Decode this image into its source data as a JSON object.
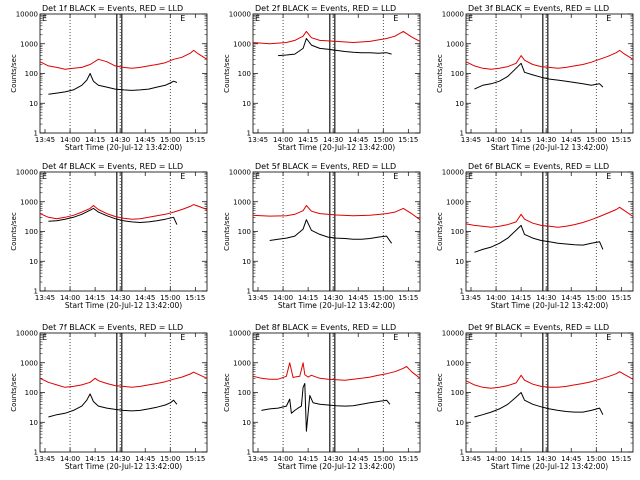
{
  "figure": {
    "colors": {
      "events": "#000000",
      "lld": "#e00000",
      "axes": "#000000"
    },
    "xlabel": "Start Time (20-Jul-12 13:42:00)",
    "ylabel": "Counts/sec",
    "xticks": [
      "13:45",
      "14:00",
      "14:15",
      "14:30",
      "14:45",
      "15:00",
      "15:15"
    ],
    "yticks": [
      "1",
      "10",
      "100",
      "1000",
      "10000"
    ],
    "marker": "E"
  },
  "chart_data": [
    {
      "type": "line",
      "title": "Det 1f BLACK = Events, RED = LLD",
      "xlabel": "Start Time (20-Jul-12 13:42:00)",
      "ylabel": "Counts/sec",
      "x_unit": "minutes after 13:42",
      "xlim": [
        0,
        100
      ],
      "yscale": "log",
      "ylim": [
        1,
        10000
      ],
      "vlines_dotted": [
        "14:00",
        "14:30",
        "15:00"
      ],
      "vlines_solid": [
        "14:28",
        "14:31"
      ],
      "series": [
        {
          "name": "LLD",
          "x": [
            0,
            5,
            10,
            15,
            20,
            25,
            30,
            35,
            40,
            45,
            50,
            55,
            60,
            65,
            70,
            75,
            80,
            85,
            90,
            92,
            95,
            100
          ],
          "y": [
            250,
            180,
            160,
            140,
            150,
            160,
            200,
            300,
            250,
            180,
            160,
            150,
            160,
            180,
            200,
            230,
            300,
            350,
            480,
            600,
            450,
            300
          ]
        },
        {
          "name": "Events",
          "x": [
            5,
            10,
            15,
            20,
            25,
            28,
            30,
            32,
            35,
            40,
            45,
            50,
            55,
            60,
            65,
            70,
            75,
            78,
            80,
            82
          ],
          "y": [
            20,
            22,
            24,
            28,
            40,
            60,
            100,
            55,
            40,
            35,
            30,
            28,
            27,
            28,
            30,
            35,
            40,
            48,
            55,
            50
          ]
        }
      ]
    },
    {
      "type": "line",
      "title": "Det 2f BLACK = Events, RED = LLD",
      "xlabel": "Start Time (20-Jul-12 13:42:00)",
      "ylabel": "Counts/sec",
      "x_unit": "minutes after 13:42",
      "xlim": [
        0,
        100
      ],
      "yscale": "log",
      "ylim": [
        1,
        10000
      ],
      "vlines_dotted": [
        "14:00",
        "14:30",
        "15:00"
      ],
      "vlines_solid": [
        "14:28",
        "14:31"
      ],
      "series": [
        {
          "name": "LLD",
          "x": [
            0,
            10,
            20,
            25,
            30,
            32,
            35,
            40,
            50,
            60,
            70,
            80,
            85,
            90,
            95,
            100
          ],
          "y": [
            1100,
            1000,
            1100,
            1300,
            1800,
            2600,
            1600,
            1300,
            1200,
            1100,
            1200,
            1500,
            1800,
            2600,
            1700,
            1200
          ]
        },
        {
          "name": "Events",
          "x": [
            15,
            20,
            25,
            30,
            32,
            35,
            40,
            45,
            50,
            55,
            60,
            65,
            70,
            75,
            80,
            83
          ],
          "y": [
            400,
            420,
            450,
            700,
            1500,
            900,
            700,
            650,
            600,
            550,
            520,
            500,
            500,
            480,
            500,
            450
          ]
        }
      ]
    },
    {
      "type": "line",
      "title": "Det 3f BLACK = Events, RED = LLD",
      "xlabel": "Start Time (20-Jul-12 13:42:00)",
      "ylabel": "Counts/sec",
      "x_unit": "minutes after 13:42",
      "xlim": [
        0,
        100
      ],
      "yscale": "log",
      "ylim": [
        1,
        10000
      ],
      "vlines_dotted": [
        "14:00",
        "14:30",
        "15:00"
      ],
      "vlines_solid": [
        "14:28",
        "14:31"
      ],
      "series": [
        {
          "name": "LLD",
          "x": [
            0,
            5,
            10,
            15,
            20,
            25,
            30,
            33,
            35,
            40,
            45,
            50,
            55,
            60,
            65,
            70,
            75,
            80,
            85,
            90,
            92,
            95,
            100
          ],
          "y": [
            250,
            180,
            150,
            140,
            150,
            170,
            220,
            400,
            280,
            200,
            170,
            160,
            150,
            160,
            180,
            200,
            240,
            300,
            380,
            500,
            600,
            450,
            300
          ]
        },
        {
          "name": "Events",
          "x": [
            5,
            10,
            15,
            20,
            25,
            30,
            33,
            35,
            40,
            45,
            50,
            55,
            60,
            65,
            70,
            75,
            80,
            82
          ],
          "y": [
            30,
            40,
            45,
            55,
            80,
            150,
            220,
            110,
            90,
            75,
            65,
            60,
            55,
            50,
            45,
            40,
            45,
            35
          ]
        }
      ]
    },
    {
      "type": "line",
      "title": "Det 4f BLACK = Events, RED = LLD",
      "xlabel": "Start Time (20-Jul-12 13:42:00)",
      "ylabel": "Counts/sec",
      "x_unit": "minutes after 13:42",
      "xlim": [
        0,
        100
      ],
      "yscale": "log",
      "ylim": [
        1,
        10000
      ],
      "vlines_dotted": [
        "14:00",
        "14:30",
        "15:00"
      ],
      "vlines_solid": [
        "14:28",
        "14:31"
      ],
      "series": [
        {
          "name": "LLD",
          "x": [
            0,
            5,
            10,
            15,
            20,
            25,
            30,
            32,
            35,
            40,
            45,
            50,
            55,
            60,
            65,
            70,
            75,
            80,
            85,
            90,
            92,
            95,
            100
          ],
          "y": [
            400,
            300,
            270,
            300,
            350,
            450,
            600,
            750,
            550,
            400,
            320,
            280,
            260,
            270,
            300,
            340,
            380,
            450,
            550,
            700,
            800,
            700,
            550
          ]
        },
        {
          "name": "Events",
          "x": [
            5,
            10,
            15,
            20,
            25,
            30,
            32,
            35,
            40,
            45,
            50,
            55,
            60,
            65,
            70,
            75,
            80,
            82
          ],
          "y": [
            220,
            230,
            260,
            300,
            380,
            520,
            600,
            450,
            340,
            270,
            230,
            210,
            200,
            210,
            230,
            260,
            300,
            170
          ]
        }
      ]
    },
    {
      "type": "line",
      "title": "Det 5f BLACK = Events, RED = LLD",
      "xlabel": "Start Time (20-Jul-12 13:42:00)",
      "ylabel": "Counts/sec",
      "x_unit": "minutes after 13:42",
      "xlim": [
        0,
        100
      ],
      "yscale": "log",
      "ylim": [
        1,
        10000
      ],
      "vlines_dotted": [
        "14:00",
        "14:30",
        "15:00"
      ],
      "vlines_solid": [
        "14:28",
        "14:31"
      ],
      "series": [
        {
          "name": "LLD",
          "x": [
            0,
            10,
            20,
            25,
            30,
            32,
            35,
            40,
            50,
            60,
            70,
            80,
            85,
            90,
            95,
            100
          ],
          "y": [
            350,
            330,
            340,
            380,
            500,
            750,
            480,
            400,
            360,
            340,
            350,
            400,
            450,
            600,
            400,
            250
          ]
        },
        {
          "name": "Events",
          "x": [
            10,
            15,
            20,
            25,
            30,
            32,
            35,
            40,
            45,
            50,
            55,
            60,
            65,
            70,
            75,
            80,
            83
          ],
          "y": [
            50,
            55,
            60,
            70,
            120,
            250,
            110,
            80,
            65,
            60,
            58,
            55,
            55,
            58,
            65,
            70,
            40
          ]
        }
      ]
    },
    {
      "type": "line",
      "title": "Det 6f BLACK = Events, RED = LLD",
      "xlabel": "Start Time (20-Jul-12 13:42:00)",
      "ylabel": "Counts/sec",
      "x_unit": "minutes after 13:42",
      "xlim": [
        0,
        100
      ],
      "yscale": "log",
      "ylim": [
        1,
        10000
      ],
      "vlines_dotted": [
        "14:00",
        "14:30",
        "15:00"
      ],
      "vlines_solid": [
        "14:28",
        "14:31"
      ],
      "series": [
        {
          "name": "LLD",
          "x": [
            0,
            5,
            10,
            15,
            20,
            25,
            30,
            33,
            35,
            40,
            45,
            50,
            55,
            60,
            65,
            70,
            75,
            80,
            85,
            90,
            92,
            95,
            100
          ],
          "y": [
            180,
            160,
            150,
            140,
            150,
            170,
            210,
            380,
            260,
            190,
            160,
            150,
            140,
            150,
            170,
            200,
            250,
            320,
            420,
            550,
            650,
            500,
            320
          ]
        },
        {
          "name": "Events",
          "x": [
            5,
            10,
            15,
            20,
            25,
            30,
            33,
            35,
            40,
            45,
            50,
            55,
            60,
            65,
            70,
            75,
            80,
            82
          ],
          "y": [
            20,
            25,
            30,
            40,
            60,
            110,
            160,
            80,
            60,
            50,
            45,
            40,
            38,
            36,
            35,
            40,
            45,
            25
          ]
        }
      ]
    },
    {
      "type": "line",
      "title": "Det 7f BLACK = Events, RED = LLD",
      "xlabel": "Start Time (20-Jul-12 13:42:00)",
      "ylabel": "Counts/sec",
      "x_unit": "minutes after 13:42",
      "xlim": [
        0,
        100
      ],
      "yscale": "log",
      "ylim": [
        1,
        10000
      ],
      "vlines_dotted": [
        "14:00",
        "14:30",
        "15:00"
      ],
      "vlines_solid": [
        "14:28",
        "14:31"
      ],
      "series": [
        {
          "name": "LLD",
          "x": [
            0,
            5,
            10,
            15,
            20,
            25,
            30,
            33,
            35,
            40,
            45,
            50,
            55,
            60,
            65,
            70,
            75,
            80,
            85,
            90,
            92,
            95,
            100
          ],
          "y": [
            300,
            220,
            180,
            150,
            160,
            180,
            220,
            300,
            250,
            200,
            170,
            160,
            150,
            160,
            180,
            200,
            230,
            280,
            330,
            420,
            480,
            400,
            300
          ]
        },
        {
          "name": "Events",
          "x": [
            5,
            10,
            15,
            20,
            25,
            28,
            30,
            32,
            35,
            40,
            45,
            50,
            55,
            60,
            65,
            70,
            75,
            78,
            80,
            82
          ],
          "y": [
            15,
            18,
            20,
            25,
            35,
            55,
            90,
            50,
            35,
            30,
            27,
            25,
            24,
            25,
            28,
            32,
            38,
            45,
            55,
            40
          ]
        }
      ]
    },
    {
      "type": "line",
      "title": "Det 8f BLACK = Events, RED = LLD",
      "xlabel": "Start Time (20-Jul-12 13:42:00)",
      "ylabel": "Counts/sec",
      "x_unit": "minutes after 13:42",
      "xlim": [
        0,
        100
      ],
      "yscale": "log",
      "ylim": [
        1,
        10000
      ],
      "vlines_dotted": [
        "14:00",
        "14:30",
        "15:00"
      ],
      "vlines_solid": [
        "14:28",
        "14:31"
      ],
      "series": [
        {
          "name": "LLD",
          "x": [
            0,
            5,
            10,
            15,
            20,
            22,
            24,
            26,
            28,
            30,
            31,
            33,
            35,
            40,
            45,
            50,
            55,
            60,
            65,
            70,
            75,
            80,
            85,
            90,
            92,
            95,
            100
          ],
          "y": [
            350,
            300,
            280,
            280,
            350,
            1000,
            320,
            340,
            350,
            1000,
            400,
            330,
            380,
            300,
            280,
            270,
            260,
            280,
            300,
            330,
            380,
            430,
            500,
            650,
            750,
            500,
            300
          ]
        },
        {
          "name": "Events",
          "x": [
            5,
            10,
            15,
            20,
            22,
            23,
            25,
            27,
            29,
            30,
            31,
            32,
            34,
            36,
            40,
            45,
            50,
            55,
            60,
            65,
            70,
            75,
            80,
            82
          ],
          "y": [
            25,
            28,
            30,
            35,
            60,
            20,
            25,
            30,
            35,
            150,
            200,
            5,
            80,
            45,
            40,
            38,
            36,
            35,
            36,
            40,
            45,
            50,
            55,
            40
          ]
        }
      ]
    },
    {
      "type": "line",
      "title": "Det 9f BLACK = Events, RED = LLD",
      "xlabel": "Start Time (20-Jul-12 13:42:00)",
      "ylabel": "Counts/sec",
      "x_unit": "minutes after 13:42",
      "xlim": [
        0,
        100
      ],
      "yscale": "log",
      "ylim": [
        1,
        10000
      ],
      "vlines_dotted": [
        "14:00",
        "14:30",
        "15:00"
      ],
      "vlines_solid": [
        "14:28",
        "14:31"
      ],
      "series": [
        {
          "name": "LLD",
          "x": [
            0,
            5,
            10,
            15,
            20,
            25,
            30,
            33,
            35,
            40,
            45,
            50,
            55,
            60,
            65,
            70,
            75,
            80,
            85,
            90,
            92,
            95,
            100
          ],
          "y": [
            250,
            180,
            150,
            140,
            150,
            170,
            210,
            380,
            260,
            190,
            160,
            150,
            150,
            160,
            180,
            200,
            230,
            280,
            340,
            430,
            500,
            400,
            280
          ]
        },
        {
          "name": "Events",
          "x": [
            5,
            10,
            15,
            20,
            25,
            30,
            33,
            35,
            40,
            45,
            50,
            55,
            60,
            65,
            70,
            75,
            80,
            82
          ],
          "y": [
            15,
            18,
            22,
            28,
            40,
            70,
            100,
            55,
            40,
            33,
            28,
            25,
            23,
            22,
            22,
            25,
            30,
            18
          ]
        }
      ]
    }
  ]
}
